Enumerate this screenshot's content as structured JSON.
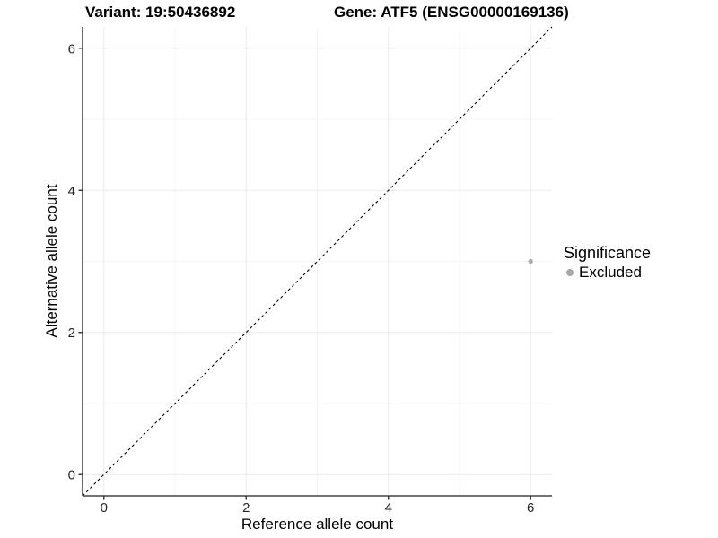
{
  "chart_data": {
    "type": "scatter",
    "titles": {
      "variant": "Variant: 19:50436892",
      "gene": "Gene: ATF5 (ENSG00000169136)"
    },
    "xlabel": "Reference allele count",
    "ylabel": "Alternative allele count",
    "xlim": [
      -0.3,
      6.3
    ],
    "ylim": [
      -0.3,
      6.3
    ],
    "x_ticks": [
      0,
      2,
      4,
      6
    ],
    "y_ticks": [
      0,
      2,
      4,
      6
    ],
    "x_minor_ticks": [
      1,
      3,
      5
    ],
    "y_minor_ticks": [
      1,
      3,
      5
    ],
    "grid": "major+minor",
    "reference_line": {
      "type": "abline",
      "slope": 1,
      "intercept": 0,
      "style": "dashed",
      "color": "#000000"
    },
    "series": [
      {
        "name": "Excluded",
        "color": "#a8a8a8",
        "points": [
          {
            "x": 6,
            "y": 3
          }
        ]
      }
    ],
    "legend": {
      "title": "Significance",
      "position": "right",
      "entries": [
        {
          "label": "Excluded",
          "color": "#a8a8a8"
        }
      ]
    },
    "colors": {
      "axis_line": "#444444",
      "tick_mark": "#333333",
      "grid_major": "#ebebeb",
      "grid_minor": "#f4f4f4",
      "point": "#a8a8a8",
      "background": "#ffffff"
    }
  }
}
